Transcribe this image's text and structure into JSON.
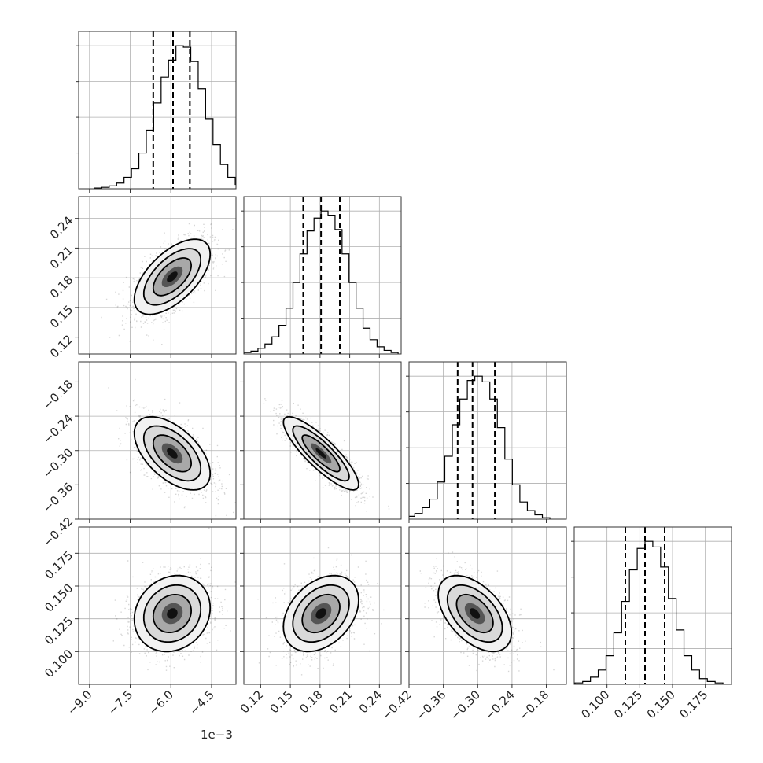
{
  "chart_data": {
    "type": "corner",
    "offset_label": "1e−3",
    "parameters": [
      {
        "range": [
          -9.4,
          -3.6
        ],
        "ticks": [
          -9.0,
          -7.5,
          -6.0,
          -4.5
        ],
        "tick_labels": [
          "−9.0",
          "−7.5",
          "−6.0",
          "−4.5"
        ],
        "quantiles": [
          -6.65,
          -5.92,
          -5.3
        ],
        "mean": -5.95,
        "std": 0.7,
        "hist_bins": [
          0.005,
          0.01,
          0.02,
          0.04,
          0.08,
          0.14,
          0.25,
          0.41,
          0.6,
          0.78,
          0.9,
          1.0,
          0.99,
          0.89,
          0.7,
          0.49,
          0.31,
          0.17,
          0.08,
          0.03,
          0.01
        ]
      },
      {
        "range": [
          0.103,
          0.262
        ],
        "ticks": [
          0.12,
          0.15,
          0.18,
          0.21,
          0.24
        ],
        "tick_labels": [
          "0.12",
          "0.15",
          "0.18",
          "0.21",
          "0.24"
        ],
        "quantiles": [
          0.163,
          0.181,
          0.2
        ],
        "mean": 0.181,
        "std": 0.019,
        "hist_bins": [
          0.01,
          0.02,
          0.04,
          0.07,
          0.12,
          0.2,
          0.32,
          0.5,
          0.7,
          0.86,
          0.95,
          1.0,
          0.97,
          0.87,
          0.7,
          0.5,
          0.32,
          0.18,
          0.1,
          0.05,
          0.025,
          0.01
        ]
      },
      {
        "range": [
          -0.42,
          -0.145
        ],
        "ticks": [
          -0.42,
          -0.36,
          -0.3,
          -0.24,
          -0.18
        ],
        "tick_labels": [
          "−0.42",
          "−0.36",
          "−0.30",
          "−0.24",
          "−0.18"
        ],
        "quantiles": [
          -0.335,
          -0.309,
          -0.27
        ],
        "mean": -0.305,
        "std": 0.032,
        "hist_bins": [
          0.01,
          0.02,
          0.04,
          0.08,
          0.14,
          0.26,
          0.44,
          0.66,
          0.84,
          0.97,
          1.0,
          0.96,
          0.84,
          0.64,
          0.42,
          0.24,
          0.12,
          0.06,
          0.03,
          0.01
        ]
      },
      {
        "range": [
          0.075,
          0.195
        ],
        "ticks": [
          0.1,
          0.125,
          0.15,
          0.175
        ],
        "tick_labels": [
          "0.100",
          "0.125",
          "0.150",
          "0.175"
        ],
        "quantiles": [
          0.114,
          0.129,
          0.144
        ],
        "mean": 0.129,
        "std": 0.0145,
        "hist_bins": [
          0.005,
          0.01,
          0.02,
          0.05,
          0.1,
          0.2,
          0.36,
          0.58,
          0.8,
          0.95,
          1.0,
          0.96,
          0.82,
          0.6,
          0.38,
          0.2,
          0.1,
          0.04,
          0.02,
          0.01
        ]
      }
    ],
    "correlations": {
      "1-0": 0.6,
      "2-0": -0.55,
      "2-1": -0.85,
      "3-0": 0.15,
      "3-1": 0.35,
      "3-2": -0.5
    }
  }
}
